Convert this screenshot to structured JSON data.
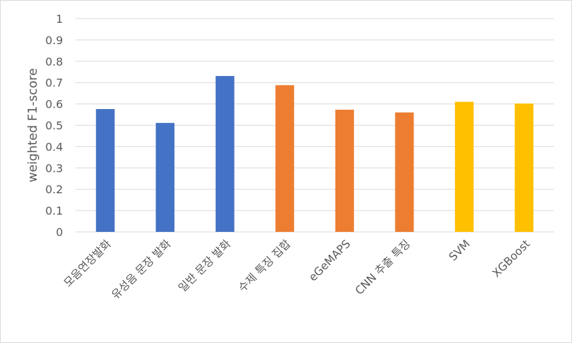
{
  "chart_data": {
    "type": "bar",
    "title": "",
    "xlabel": "",
    "ylabel": "weighted F1-score",
    "ylim": [
      0,
      1
    ],
    "yticks": [
      0,
      0.1,
      0.2,
      0.3,
      0.4,
      0.5,
      0.6,
      0.7,
      0.8,
      0.9,
      1
    ],
    "ytick_labels": [
      "0",
      "0.1",
      "0.2",
      "0.3",
      "0.4",
      "0.5",
      "0.6",
      "0.7",
      "0.8",
      "0.9",
      "1"
    ],
    "grid": true,
    "legend": "none",
    "categories": [
      "모음연장발화",
      "유성음 문장 발화",
      "일반 문장 발화",
      "수제 특징 집합",
      "eGeMAPS",
      "CNN 추출 특징",
      "SVM",
      "XGBoost"
    ],
    "values": [
      0.576,
      0.511,
      0.731,
      0.688,
      0.573,
      0.56,
      0.61,
      0.602
    ],
    "bar_colors": [
      "#4472c4",
      "#4472c4",
      "#4472c4",
      "#ed7d31",
      "#ed7d31",
      "#ed7d31",
      "#ffc000",
      "#ffc000"
    ]
  },
  "style": {
    "grid_color": "#d9d9d9",
    "text_color": "#595959"
  }
}
